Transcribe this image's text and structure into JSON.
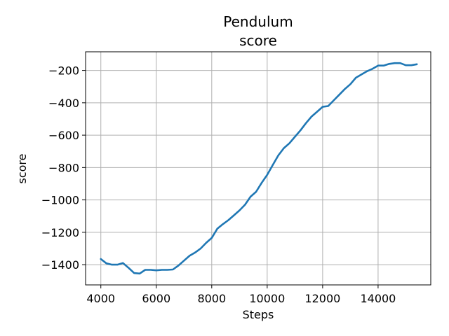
{
  "chart_data": {
    "type": "line",
    "title_line1": "Pendulum",
    "title_line2": "score",
    "xlabel": "Steps",
    "ylabel": "score",
    "xlim": [
      3450,
      15900
    ],
    "ylim": [
      -1525,
      -85
    ],
    "xticks": [
      4000,
      6000,
      8000,
      10000,
      12000,
      14000
    ],
    "xtick_labels": [
      "4000",
      "6000",
      "8000",
      "10000",
      "12000",
      "14000"
    ],
    "yticks": [
      -1400,
      -1200,
      -1000,
      -800,
      -600,
      -400,
      -200
    ],
    "ytick_labels": [
      "−1400",
      "−1200",
      "−1000",
      "−800",
      "−600",
      "−400",
      "−200"
    ],
    "grid": true,
    "colors": {
      "line": "#1f77b4"
    },
    "series": [
      {
        "x": [
          4000,
          4200,
          4400,
          4600,
          4800,
          5000,
          5200,
          5400,
          5600,
          5800,
          6000,
          6200,
          6400,
          6600,
          6800,
          7000,
          7200,
          7400,
          7600,
          7800,
          8000,
          8200,
          8400,
          8600,
          8800,
          9000,
          9200,
          9400,
          9600,
          9800,
          10000,
          10200,
          10400,
          10600,
          10800,
          11000,
          11200,
          11400,
          11600,
          11800,
          12000,
          12200,
          12400,
          12600,
          12800,
          13000,
          13200,
          13400,
          13600,
          13800,
          14000,
          14200,
          14400,
          14600,
          14800,
          15000,
          15200,
          15400
        ],
        "y": [
          -1365,
          -1392,
          -1400,
          -1400,
          -1390,
          -1420,
          -1452,
          -1455,
          -1432,
          -1432,
          -1435,
          -1432,
          -1432,
          -1430,
          -1405,
          -1375,
          -1345,
          -1325,
          -1300,
          -1265,
          -1235,
          -1178,
          -1150,
          -1125,
          -1095,
          -1065,
          -1030,
          -980,
          -950,
          -895,
          -845,
          -785,
          -725,
          -680,
          -650,
          -610,
          -570,
          -525,
          -485,
          -455,
          -425,
          -420,
          -385,
          -350,
          -315,
          -285,
          -245,
          -225,
          -205,
          -190,
          -170,
          -170,
          -160,
          -155,
          -155,
          -168,
          -168,
          -162
        ]
      }
    ]
  }
}
